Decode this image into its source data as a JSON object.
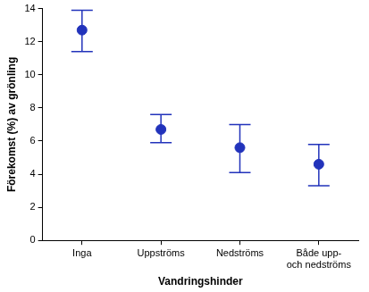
{
  "chart_data": {
    "type": "scatter",
    "categories": [
      "Inga",
      "Uppströms",
      "Nedströms",
      "Både upp-\noch nedströms"
    ],
    "values": [
      12.7,
      6.7,
      5.6,
      4.6
    ],
    "error_low": [
      11.4,
      5.9,
      4.1,
      3.3
    ],
    "error_high": [
      13.9,
      7.6,
      7.0,
      5.8
    ],
    "color": "#2233bb",
    "x_label": "Vandringshinder",
    "y_label": "Förekomst (%) av grönling",
    "ylim": [
      0,
      14
    ],
    "yticks": [
      0,
      2,
      4,
      6,
      8,
      10,
      12,
      14
    ],
    "grid": false,
    "marker": "circle"
  }
}
